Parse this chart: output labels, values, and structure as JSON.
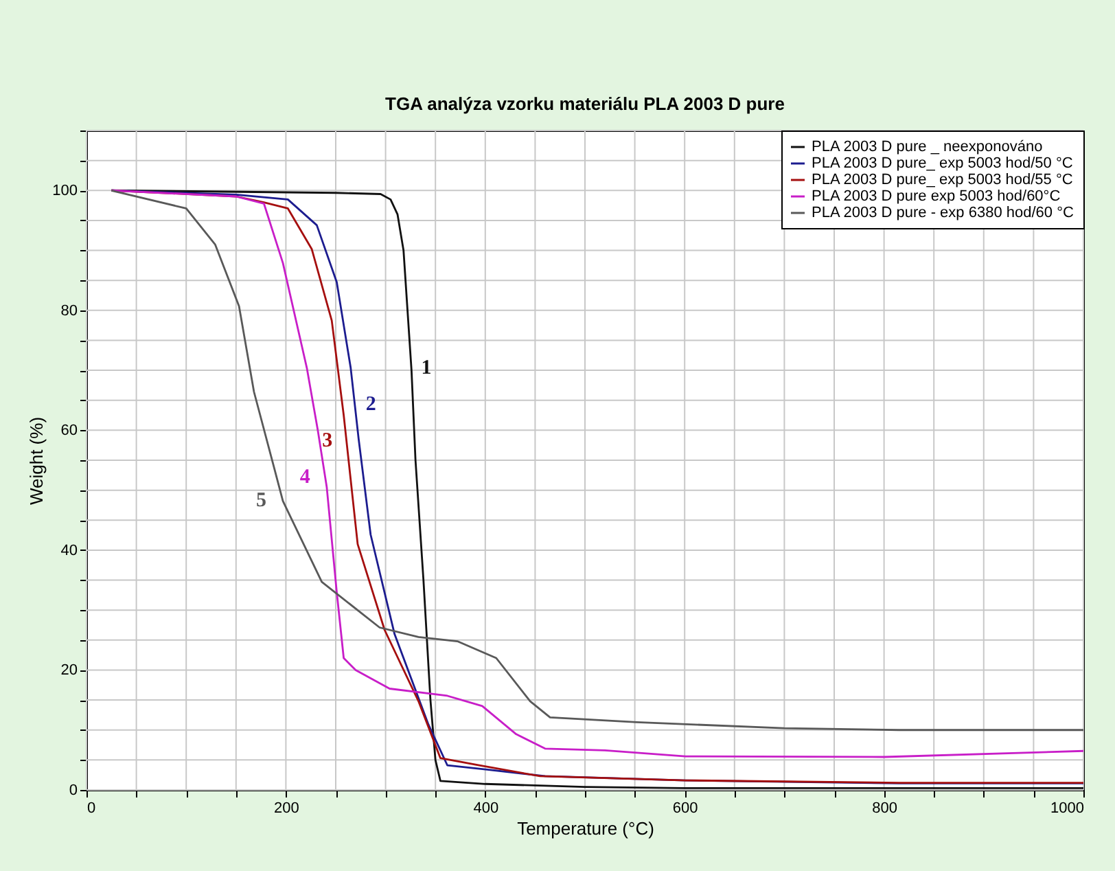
{
  "chart_data": {
    "type": "line",
    "title": "TGA analýza vzorku materiálu PLA 2003 D pure",
    "xlabel": "Temperature (°C)",
    "ylabel": "Weight (%)",
    "xlim": [
      0,
      1000
    ],
    "ylim": [
      0,
      110
    ],
    "xticks": [
      0,
      {
        "value": 50,
        "label": null
      },
      {
        "value": 100,
        "label": null
      },
      {
        "value": 150,
        "label": null
      },
      200,
      {
        "value": 250,
        "label": null
      },
      {
        "value": 300,
        "label": null
      },
      {
        "value": 350,
        "label": null
      },
      400,
      {
        "value": 450,
        "label": null
      },
      {
        "value": 500,
        "label": null
      },
      {
        "value": 550,
        "label": null
      },
      600,
      {
        "value": 650,
        "label": null
      },
      {
        "value": 700,
        "label": null
      },
      {
        "value": 750,
        "label": null
      },
      800,
      {
        "value": 850,
        "label": null
      },
      {
        "value": 900,
        "label": null
      },
      {
        "value": 950,
        "label": null
      },
      1000
    ],
    "yticks": [
      0,
      {
        "value": 5,
        "label": null
      },
      {
        "value": 10,
        "label": null
      },
      {
        "value": 15,
        "label": null
      },
      20,
      {
        "value": 25,
        "label": null
      },
      {
        "value": 30,
        "label": null
      },
      {
        "value": 35,
        "label": null
      },
      40,
      {
        "value": 45,
        "label": null
      },
      {
        "value": 50,
        "label": null
      },
      {
        "value": 55,
        "label": null
      },
      60,
      {
        "value": 65,
        "label": null
      },
      {
        "value": 70,
        "label": null
      },
      {
        "value": 75,
        "label": null
      },
      80,
      {
        "value": 85,
        "label": null
      },
      {
        "value": 90,
        "label": null
      },
      {
        "value": 95,
        "label": null
      },
      100,
      {
        "value": 105,
        "label": null
      },
      {
        "value": 110,
        "label": null
      }
    ],
    "grid": true,
    "legend": "top right",
    "marker": "none",
    "line_style": "solid",
    "series": [
      {
        "name": "PLA 2003 D pure _ neexponováno",
        "color": "#111111",
        "x": [
          25,
          250,
          295,
          305,
          312,
          318,
          322,
          326,
          330,
          338,
          345,
          350,
          355,
          400,
          500,
          600,
          1000
        ],
        "values": [
          100,
          99.6,
          99.4,
          98.5,
          96,
          90,
          80,
          70,
          55,
          35,
          15,
          5,
          1.5,
          1,
          0.5,
          0.3,
          0.3
        ]
      },
      {
        "name": "PLA 2003 D pure_ exp 5003 hod/50 °C",
        "color": "#1c1c8f",
        "x": [
          25,
          150,
          202,
          231,
          251,
          265,
          273,
          285,
          309,
          343,
          362,
          402,
          460,
          601,
          815,
          1000
        ],
        "values": [
          100,
          99.3,
          98.5,
          94.2,
          84.7,
          70.4,
          58.5,
          42.6,
          26,
          10.9,
          4.1,
          3.4,
          2.3,
          1.6,
          1.1,
          1.1
        ]
      },
      {
        "name": "PLA 2003 D pure_ exp 5003 hod/55 °C",
        "color": "#a50f0f",
        "x": [
          25,
          150,
          178,
          202,
          226,
          246,
          258,
          272,
          299,
          333,
          355,
          394,
          455,
          601,
          815,
          1000
        ],
        "values": [
          100,
          99,
          98,
          97,
          90.2,
          78.3,
          62.5,
          41,
          26.7,
          14.8,
          5.3,
          4.1,
          2.3,
          1.6,
          1.2,
          1.2
        ]
      },
      {
        "name": "PLA 2003 D pure exp 5003 hod/60°C",
        "color": "#c81ec8",
        "x": [
          25,
          150,
          178,
          197,
          221,
          232,
          241,
          251,
          258,
          270,
          304,
          362,
          397,
          431,
          460,
          520,
          601,
          800,
          1000
        ],
        "values": [
          100,
          99,
          97.8,
          87.9,
          70.4,
          60,
          50.5,
          33,
          22,
          20,
          16.9,
          15.7,
          14,
          9.3,
          6.9,
          6.6,
          5.6,
          5.5,
          6.5
        ]
      },
      {
        "name": "PLA 2003 D pure - exp 6380 hod/60 °C",
        "color": "#595959",
        "x": [
          25,
          100,
          129,
          153,
          168,
          187,
          197,
          236,
          294,
          333,
          372,
          411,
          445,
          465,
          552,
          700,
          815,
          1000
        ],
        "values": [
          100,
          97,
          91,
          80.7,
          66.4,
          54.5,
          48.2,
          34.7,
          27.1,
          25.5,
          24.8,
          22,
          14.8,
          12.1,
          11.3,
          10.3,
          10,
          10
        ]
      }
    ],
    "annotations": [
      "1",
      "2",
      "3",
      "4",
      "5"
    ]
  }
}
